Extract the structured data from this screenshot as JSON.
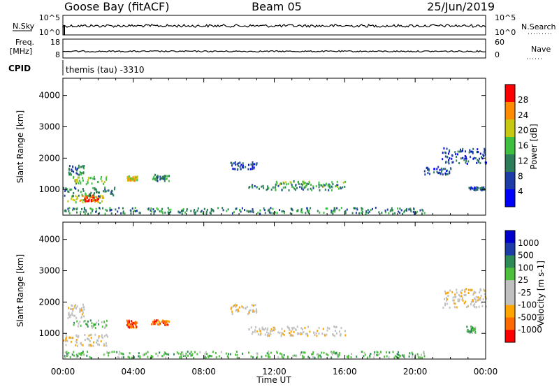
{
  "header": {
    "station": "Goose Bay (fitACF)",
    "beam": "Beam 05",
    "date": "25/Jun/2019"
  },
  "top_panels": {
    "nsky_label": "N.Sky",
    "nsky_ticks": [
      "10^5",
      "10^0"
    ],
    "nsearch_label": "N.Search",
    "nsearch_ticks": [
      "10^5",
      "10^0"
    ],
    "freq_label_line1": "Freq.",
    "freq_label_line2": "[MHz]",
    "freq_ticks": [
      "18",
      "8"
    ],
    "nave_label": "Nave",
    "nave_ticks": [
      "60",
      "0"
    ],
    "cpid_label": "CPID",
    "cpid_text": "themis (tau) -3310"
  },
  "chart_data": [
    {
      "type": "heatmap",
      "name": "power",
      "ylabel": "Slant Range [km]",
      "ylim": [
        180,
        4550
      ],
      "yticks": [
        "4000",
        "3000",
        "2000",
        "1000"
      ],
      "colorbar_label": "Power [dB]",
      "colorbar_ticks": [
        "28",
        "24",
        "20",
        "16",
        "12",
        "8",
        "4"
      ],
      "colorscale": [
        "#0000ff",
        "#1e3ca8",
        "#2e7d5a",
        "#3fbf3f",
        "#c8c810",
        "#ff8c00",
        "#ff0000"
      ],
      "clusters": [
        {
          "t": [
            0.2,
            2.3
          ],
          "r": [
            600,
            850
          ],
          "level": 4
        },
        {
          "t": [
            1.2,
            2.0
          ],
          "r": [
            650,
            850
          ],
          "level": 6
        },
        {
          "t": [
            0.0,
            3.0
          ],
          "r": [
            800,
            1100
          ],
          "level": 2
        },
        {
          "t": [
            0.5,
            2.5
          ],
          "r": [
            1200,
            1450
          ],
          "level": 3
        },
        {
          "t": [
            0.3,
            1.2
          ],
          "r": [
            1500,
            1800
          ],
          "level": 2
        },
        {
          "t": [
            3.6,
            4.2
          ],
          "r": [
            1300,
            1450
          ],
          "level": 4
        },
        {
          "t": [
            5.0,
            6.0
          ],
          "r": [
            1300,
            1500
          ],
          "level": 2
        },
        {
          "t": [
            9.5,
            11.0
          ],
          "r": [
            1650,
            1900
          ],
          "level": 1
        },
        {
          "t": [
            10.5,
            16.0
          ],
          "r": [
            1000,
            1200
          ],
          "level": 2
        },
        {
          "t": [
            12.0,
            16.0
          ],
          "r": [
            1100,
            1300
          ],
          "level": 3
        },
        {
          "t": [
            20.5,
            22.0
          ],
          "r": [
            1500,
            1750
          ],
          "level": 1
        },
        {
          "t": [
            21.5,
            24.0
          ],
          "r": [
            1850,
            2350
          ],
          "level": 1
        },
        {
          "t": [
            23.0,
            23.9
          ],
          "r": [
            1000,
            1100
          ],
          "level": 1
        },
        {
          "t": [
            0.0,
            20.5
          ],
          "r": [
            250,
            450
          ],
          "level": 2
        }
      ]
    },
    {
      "type": "heatmap",
      "name": "velocity",
      "ylabel": "Slant Range [km]",
      "ylim": [
        180,
        4550
      ],
      "yticks": [
        "4000",
        "3000",
        "2000",
        "1000"
      ],
      "xlabel": "Time UT",
      "xticks": [
        "00:00",
        "04:00",
        "08:00",
        "12:00",
        "16:00",
        "20:00",
        "00:00"
      ],
      "colorbar_label": "Velocity [m s-1]",
      "colorbar_ticks": [
        "1000",
        "500",
        "100",
        "25",
        "-25",
        "-100",
        "-500",
        "-1000"
      ],
      "colorscale": [
        "#ff0000",
        "#ff6a00",
        "#ffa500",
        "#c0c0c0",
        "#c0c0c0",
        "#4cc03a",
        "#2e8b57",
        "#1e3ca8",
        "#0000cc"
      ],
      "clusters": [
        {
          "t": [
            0.0,
            2.5
          ],
          "r": [
            600,
            1000
          ],
          "level": 3
        },
        {
          "t": [
            0.2,
            1.2
          ],
          "r": [
            1500,
            1950
          ],
          "level": 3
        },
        {
          "t": [
            0.5,
            2.5
          ],
          "r": [
            1200,
            1450
          ],
          "level": 5
        },
        {
          "t": [
            3.6,
            4.2
          ],
          "r": [
            1200,
            1450
          ],
          "level": 1
        },
        {
          "t": [
            5.0,
            6.0
          ],
          "r": [
            1300,
            1450
          ],
          "level": 1
        },
        {
          "t": [
            9.5,
            11.0
          ],
          "r": [
            1650,
            1950
          ],
          "level": 3
        },
        {
          "t": [
            10.5,
            16.0
          ],
          "r": [
            950,
            1250
          ],
          "level": 3
        },
        {
          "t": [
            21.5,
            24.0
          ],
          "r": [
            1850,
            2450
          ],
          "level": 3
        },
        {
          "t": [
            22.9,
            23.4
          ],
          "r": [
            1050,
            1250
          ],
          "level": 5
        },
        {
          "t": [
            0.0,
            20.5
          ],
          "r": [
            250,
            450
          ],
          "level": 5
        }
      ]
    }
  ]
}
